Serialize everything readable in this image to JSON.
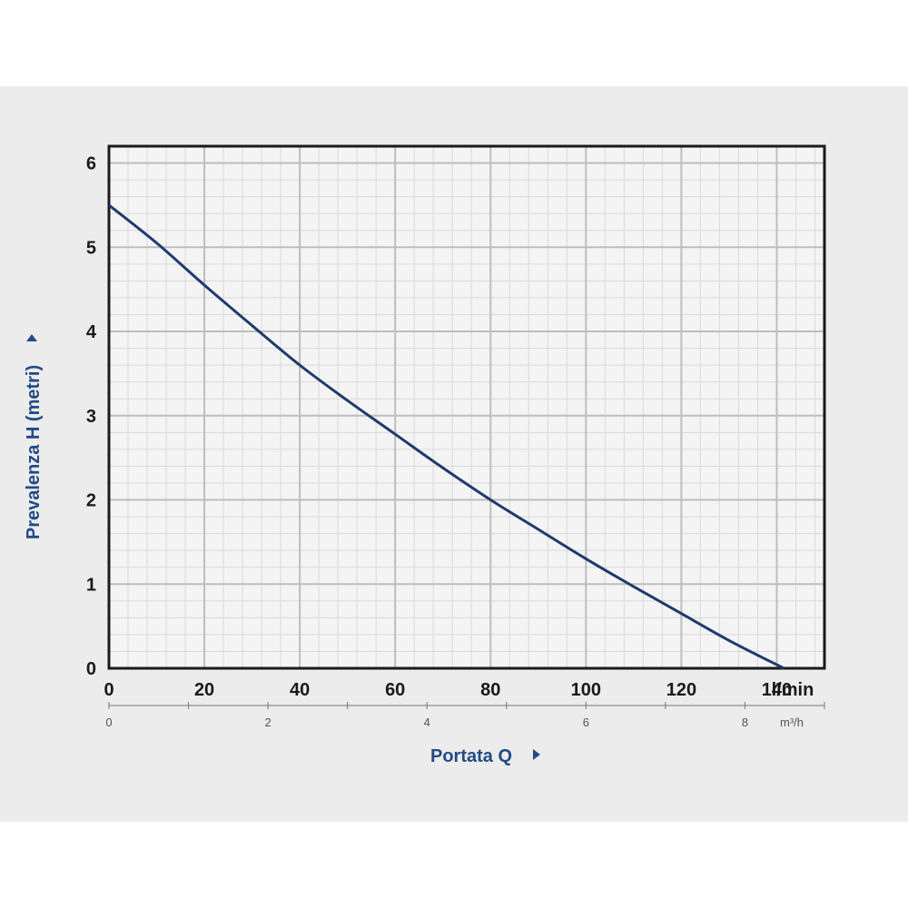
{
  "colors": {
    "curve": "#1f3a6e",
    "axis_title": "#244a86",
    "grid_major": "#bdbdbd",
    "grid_minor": "#d9d9d9",
    "plot_bg": "#f4f4f4",
    "panel_bg": "#ececec"
  },
  "chart_data": {
    "type": "line",
    "xlabel": "Portata Q",
    "ylabel": "Prevalenza H (metri)",
    "x_unit": "l/min",
    "x2_unit": "m³/h",
    "xlim": [
      0,
      150
    ],
    "ylim": [
      0,
      6.2
    ],
    "x_ticks": [
      "0",
      "20",
      "40",
      "60",
      "80",
      "100",
      "120",
      "140"
    ],
    "x2_ticks": [
      "0",
      "2",
      "4",
      "6",
      "8"
    ],
    "y_ticks": [
      "0",
      "1",
      "2",
      "3",
      "4",
      "5",
      "6"
    ],
    "grid": true,
    "series": [
      {
        "x": [
          0,
          10,
          20,
          30,
          40,
          50,
          60,
          70,
          80,
          90,
          100,
          110,
          120,
          130,
          141.5
        ],
        "y": [
          5.5,
          5.05,
          4.55,
          4.07,
          3.6,
          3.18,
          2.78,
          2.38,
          2.0,
          1.65,
          1.3,
          0.97,
          0.65,
          0.33,
          0
        ]
      }
    ]
  }
}
